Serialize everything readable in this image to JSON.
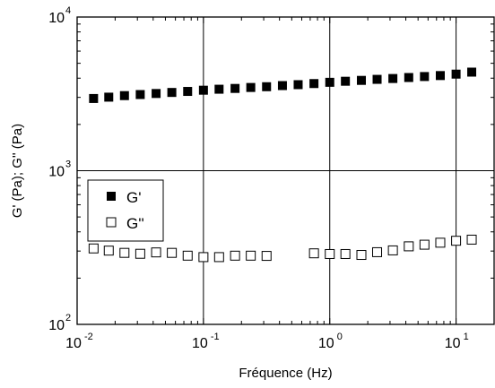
{
  "chart_data": {
    "type": "scatter",
    "x_scale": "log",
    "y_scale": "log",
    "xlabel": "Fréquence (Hz)",
    "ylabel": "G' (Pa); G'' (Pa)",
    "xlim": [
      0.01,
      20
    ],
    "ylim": [
      100,
      10000
    ],
    "x_ticks": [
      {
        "value": 0.01,
        "base": "10",
        "exp": "-2"
      },
      {
        "value": 0.1,
        "base": "10",
        "exp": "-1"
      },
      {
        "value": 1,
        "base": "10",
        "exp": "0"
      },
      {
        "value": 10,
        "base": "10",
        "exp": "1"
      }
    ],
    "y_ticks": [
      {
        "value": 100,
        "base": "10",
        "exp": "2"
      },
      {
        "value": 1000,
        "base": "10",
        "exp": "3"
      },
      {
        "value": 10000,
        "base": "10",
        "exp": "4"
      }
    ],
    "grid": "major",
    "legend_position": "left-middle",
    "series": [
      {
        "name": "G'",
        "marker": "filled-square",
        "color": "#000000",
        "x": [
          0.0135,
          0.0178,
          0.0237,
          0.0316,
          0.0422,
          0.0562,
          0.075,
          0.1,
          0.133,
          0.178,
          0.237,
          0.316,
          0.422,
          0.562,
          0.75,
          1.0,
          1.33,
          1.78,
          2.37,
          3.16,
          4.22,
          5.62,
          7.5,
          10.0,
          13.3
        ],
        "y": [
          2950,
          3010,
          3080,
          3130,
          3180,
          3230,
          3280,
          3340,
          3390,
          3430,
          3480,
          3520,
          3580,
          3630,
          3690,
          3760,
          3820,
          3870,
          3930,
          3980,
          4040,
          4100,
          4160,
          4250,
          4380
        ]
      },
      {
        "name": "G''",
        "marker": "open-square",
        "color": "#000000",
        "x": [
          0.0135,
          0.0178,
          0.0237,
          0.0316,
          0.0422,
          0.0562,
          0.075,
          0.1,
          0.133,
          0.178,
          0.237,
          0.316,
          0.75,
          1.0,
          1.33,
          1.78,
          2.37,
          3.16,
          4.22,
          5.62,
          7.5,
          10.0,
          13.3
        ],
        "y": [
          312,
          302,
          292,
          288,
          294,
          292,
          280,
          274,
          274,
          280,
          280,
          279,
          290,
          287,
          287,
          283,
          295,
          303,
          322,
          330,
          340,
          350,
          356
        ]
      }
    ]
  }
}
